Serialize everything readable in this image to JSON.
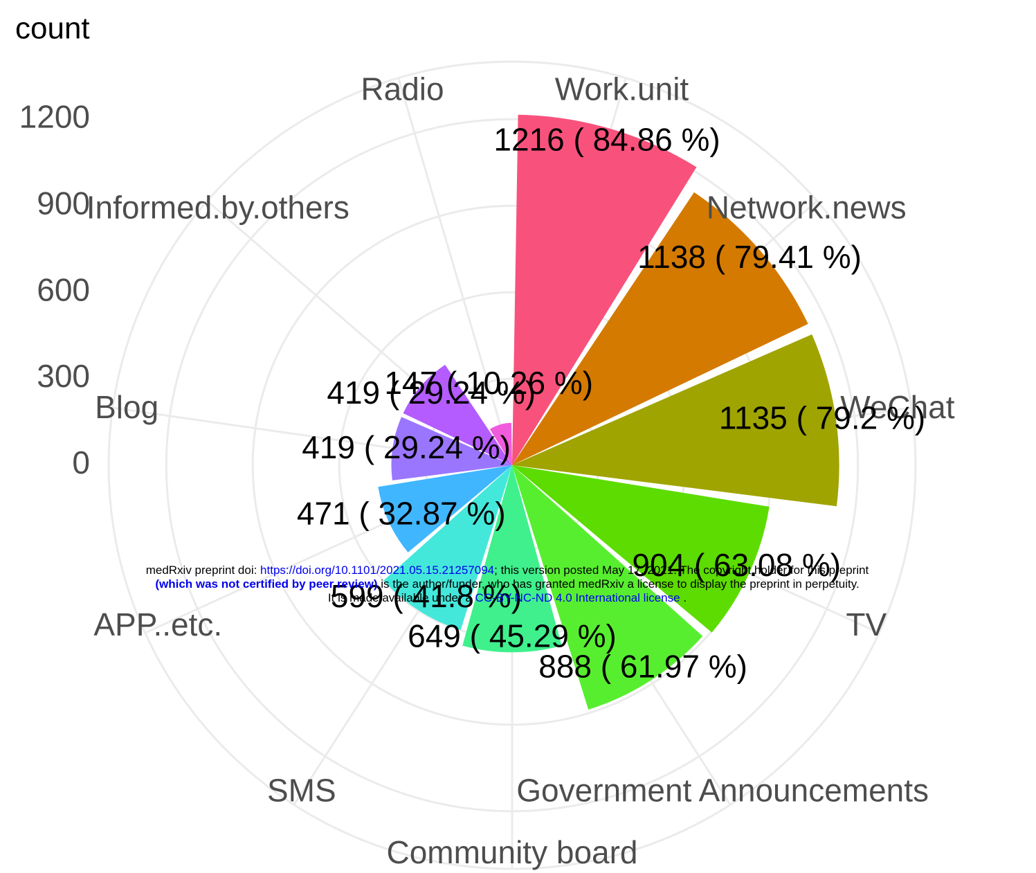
{
  "chart_data": {
    "type": "polar_bar",
    "y_label": "count",
    "categories": [
      "Work.unit",
      "Network.news",
      "WeChat",
      "TV",
      "Government Announcements",
      "Community board",
      "SMS",
      "APP..etc.",
      "Blog",
      "Informed.by.others",
      "Radio"
    ],
    "values": [
      1216,
      1138,
      1135,
      904,
      888,
      649,
      599,
      471,
      419,
      419,
      147
    ],
    "value_labels": [
      "1216 ( 84.86 %)",
      "1138 ( 79.41 %)",
      "1135 ( 79.2 %)",
      "904 ( 63.08 %)",
      "888 ( 61.97 %)",
      "649 ( 45.29 %)",
      "599 ( 41.8 %)",
      "471 ( 32.87 %)",
      "419 ( 29.24 %)",
      "419 ( 29.24 %)",
      "147 ( 10.26 %)"
    ],
    "colors": [
      "#F8527C",
      "#D47A00",
      "#9FA400",
      "#5CDC00",
      "#58EE30",
      "#3FF08C",
      "#44E8DA",
      "#40B6FF",
      "#9A76FF",
      "#B45CFF",
      "#F05CDC"
    ],
    "ylim": [
      0,
      1400
    ],
    "yticks": [
      0,
      300,
      600,
      900,
      1200
    ],
    "grid": true
  },
  "footer": {
    "line1": [
      "medRxiv preprint doi: ",
      "https://doi.org/10.1101/2021.05.15.21257094",
      "; this version posted May 17, 2021. The copyright holder for this preprint"
    ],
    "line2": [
      "(which was not certified by peer review)",
      " is the author/funder, who has granted medRxiv a license to display the preprint in perpetuity."
    ],
    "line3": [
      "It is made available under a ",
      "CC-BY-NC-ND 4.0 International license",
      " ."
    ]
  }
}
